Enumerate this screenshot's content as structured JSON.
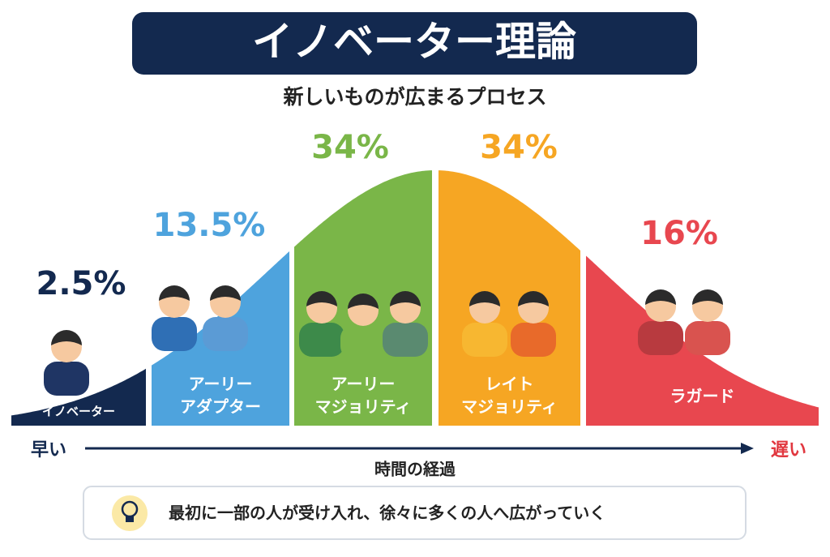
{
  "header": {
    "title": "イノベーター理論",
    "subtitle": "新しいものが広まるプロセス"
  },
  "segments": [
    {
      "percent": "2.5%",
      "label": [
        "イノベーター"
      ]
    },
    {
      "percent": "13.5%",
      "label": [
        "アーリー",
        "アダプター"
      ]
    },
    {
      "percent": "34%",
      "label": [
        "アーリー",
        "マジョリティ"
      ]
    },
    {
      "percent": "34%",
      "label": [
        "レイト",
        "マジョリティ"
      ]
    },
    {
      "percent": "16%",
      "label": [
        "ラガード"
      ]
    }
  ],
  "axis": {
    "start": "早い",
    "end": "遅い",
    "caption": "時間の経過"
  },
  "note": "最初に一部の人が受け入れ、徐々に多くの人へ広がっていく"
}
